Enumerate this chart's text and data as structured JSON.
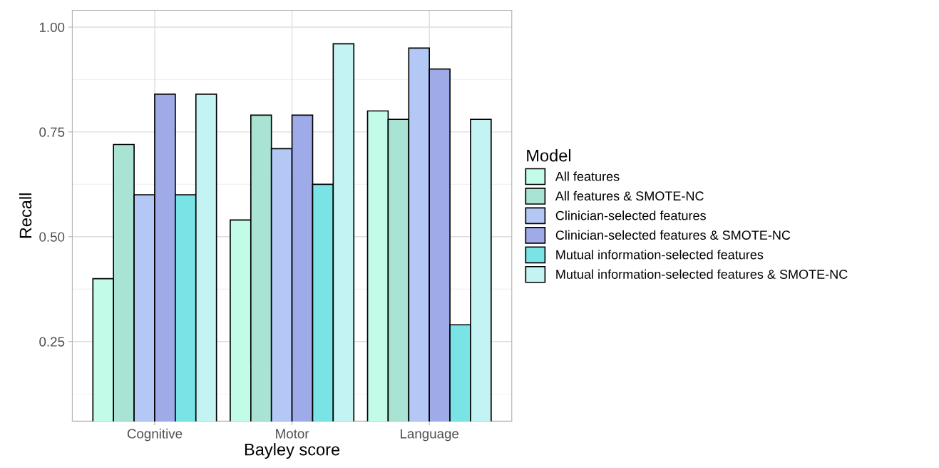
{
  "chart_data": {
    "type": "bar",
    "xlabel": "Bayley score",
    "ylabel": "Recall",
    "legend_title": "Model",
    "categories": [
      "Cognitive",
      "Motor",
      "Language"
    ],
    "series": [
      {
        "name": "All features",
        "color": "#c2fbe8",
        "values": [
          0.4,
          0.54,
          0.8
        ]
      },
      {
        "name": "All features & SMOTE-NC",
        "color": "#a9e3d3",
        "values": [
          0.72,
          0.79,
          0.78
        ]
      },
      {
        "name": "Clinician-selected features",
        "color": "#b3c8f5",
        "values": [
          0.6,
          0.71,
          0.95
        ]
      },
      {
        "name": "Clinician-selected features & SMOTE-NC",
        "color": "#9eabe8",
        "values": [
          0.84,
          0.79,
          0.9
        ]
      },
      {
        "name": "Mutual information-selected features",
        "color": "#7ae3e6",
        "values": [
          0.6,
          0.625,
          0.29
        ]
      },
      {
        "name": "Mutual information-selected features & SMOTE-NC",
        "color": "#c4f3f3",
        "values": [
          0.84,
          0.96,
          0.78
        ]
      }
    ],
    "ylim": [
      0.06,
      1.04
    ],
    "yticks": [
      {
        "value": 0.25,
        "label": "0.25"
      },
      {
        "value": 0.5,
        "label": "0.50"
      },
      {
        "value": 0.75,
        "label": "0.75"
      },
      {
        "value": 1.0,
        "label": "1.00"
      }
    ],
    "grid": true,
    "legend": "right"
  }
}
